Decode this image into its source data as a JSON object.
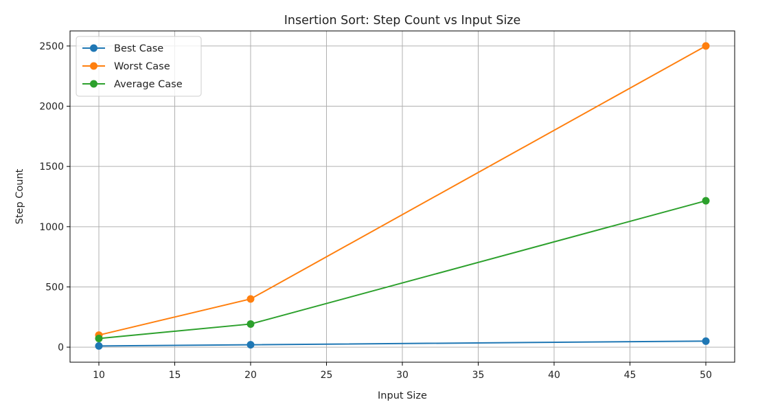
{
  "chart_data": {
    "type": "line",
    "title": "Insertion Sort:  Step Count vs Input Size",
    "xlabel": "Input Size",
    "ylabel": "Step Count",
    "x": [
      10,
      20,
      50
    ],
    "xlim": [
      8.1,
      51.9
    ],
    "ylim": [
      -125,
      2625
    ],
    "xticks": [
      10,
      15,
      20,
      25,
      30,
      35,
      40,
      45,
      50
    ],
    "yticks": [
      0,
      500,
      1000,
      1500,
      2000,
      2500
    ],
    "grid": true,
    "legend_position": "upper-left",
    "series": [
      {
        "name": "Best Case",
        "values": [
          10,
          20,
          50
        ],
        "color": "#1f77b4",
        "marker": "circle"
      },
      {
        "name": "Worst Case",
        "values": [
          100,
          400,
          2500
        ],
        "color": "#ff7f0e",
        "marker": "circle"
      },
      {
        "name": "Average Case",
        "values": [
          72,
          192,
          1215
        ],
        "color": "#2ca02c",
        "marker": "circle"
      }
    ]
  }
}
